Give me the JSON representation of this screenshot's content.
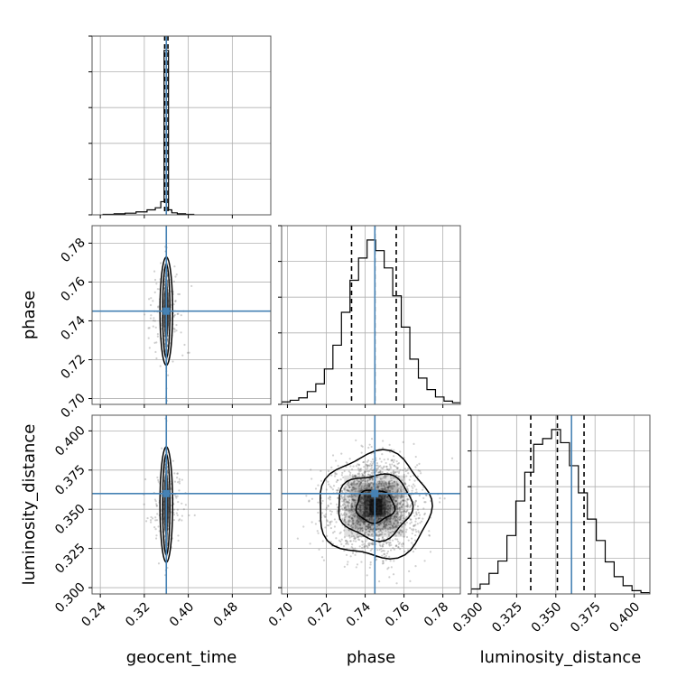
{
  "chart_data": {
    "type": "corner",
    "parameters": [
      "geocent_time",
      "phase",
      "luminosity_distance"
    ],
    "labels": {
      "x": [
        "geocent_time",
        "phase",
        "luminosity_distance"
      ],
      "y": [
        "phase",
        "luminosity_distance"
      ]
    },
    "ranges": {
      "geocent_time": [
        0.225,
        0.55
      ],
      "phase": [
        0.697,
        0.789
      ],
      "luminosity_distance": [
        0.296,
        0.41
      ]
    },
    "ticks": {
      "geocent_time": [
        0.24,
        0.32,
        0.4,
        0.48
      ],
      "phase": [
        0.7,
        0.72,
        0.74,
        0.76,
        0.78
      ],
      "luminosity_distance": [
        0.3,
        0.325,
        0.35,
        0.375,
        0.4
      ]
    },
    "tick_labels": {
      "geocent_time": [
        "0.24",
        "0.32",
        "0.40",
        "0.48"
      ],
      "phase": [
        "0.70",
        "0.72",
        "0.74",
        "0.76",
        "0.78"
      ],
      "luminosity_distance": [
        "0.300",
        "0.325",
        "0.350",
        "0.375",
        "0.400"
      ]
    },
    "truths": {
      "geocent_time": 0.36,
      "phase": 0.745,
      "luminosity_distance": 0.36
    },
    "quantiles": {
      "geocent_time": [
        0.357,
        0.36,
        0.363
      ],
      "phase": [
        0.733,
        0.745,
        0.756
      ],
      "luminosity_distance": [
        0.334,
        0.351,
        0.368
      ]
    },
    "histograms": {
      "geocent_time": {
        "edges": [
          0.245,
          0.265,
          0.285,
          0.305,
          0.325,
          0.34,
          0.35,
          0.356,
          0.364,
          0.37,
          0.38,
          0.395,
          0.41
        ],
        "counts": [
          0.003,
          0.006,
          0.01,
          0.018,
          0.03,
          0.043,
          0.08,
          1.0,
          0.03,
          0.012,
          0.006,
          0.003
        ]
      },
      "phase": {
        "edges": [
          0.697,
          0.7014,
          0.7058,
          0.7102,
          0.7146,
          0.719,
          0.7234,
          0.7278,
          0.7322,
          0.7366,
          0.741,
          0.7454,
          0.7498,
          0.7542,
          0.7586,
          0.763,
          0.7674,
          0.7718,
          0.7762,
          0.7806,
          0.785,
          0.789
        ],
        "counts": [
          0.015,
          0.025,
          0.04,
          0.078,
          0.125,
          0.215,
          0.36,
          0.56,
          0.755,
          0.89,
          1.0,
          0.935,
          0.83,
          0.66,
          0.47,
          0.275,
          0.16,
          0.09,
          0.045,
          0.02,
          0.01
        ]
      },
      "luminosity_distance": {
        "edges": [
          0.296,
          0.3017,
          0.3074,
          0.3131,
          0.3188,
          0.3245,
          0.3302,
          0.3359,
          0.3416,
          0.3473,
          0.353,
          0.3587,
          0.3644,
          0.3701,
          0.3758,
          0.3815,
          0.3872,
          0.3929,
          0.3986,
          0.4043,
          0.41
        ],
        "counts": [
          0.03,
          0.06,
          0.125,
          0.2,
          0.355,
          0.565,
          0.74,
          0.91,
          0.945,
          1.0,
          0.92,
          0.78,
          0.615,
          0.455,
          0.325,
          0.195,
          0.105,
          0.05,
          0.02,
          0.008
        ]
      }
    },
    "scatter_style": {
      "point_color": "#555555",
      "truth_color": "#4682b4",
      "contour_color": "#000000",
      "grid": true
    }
  }
}
